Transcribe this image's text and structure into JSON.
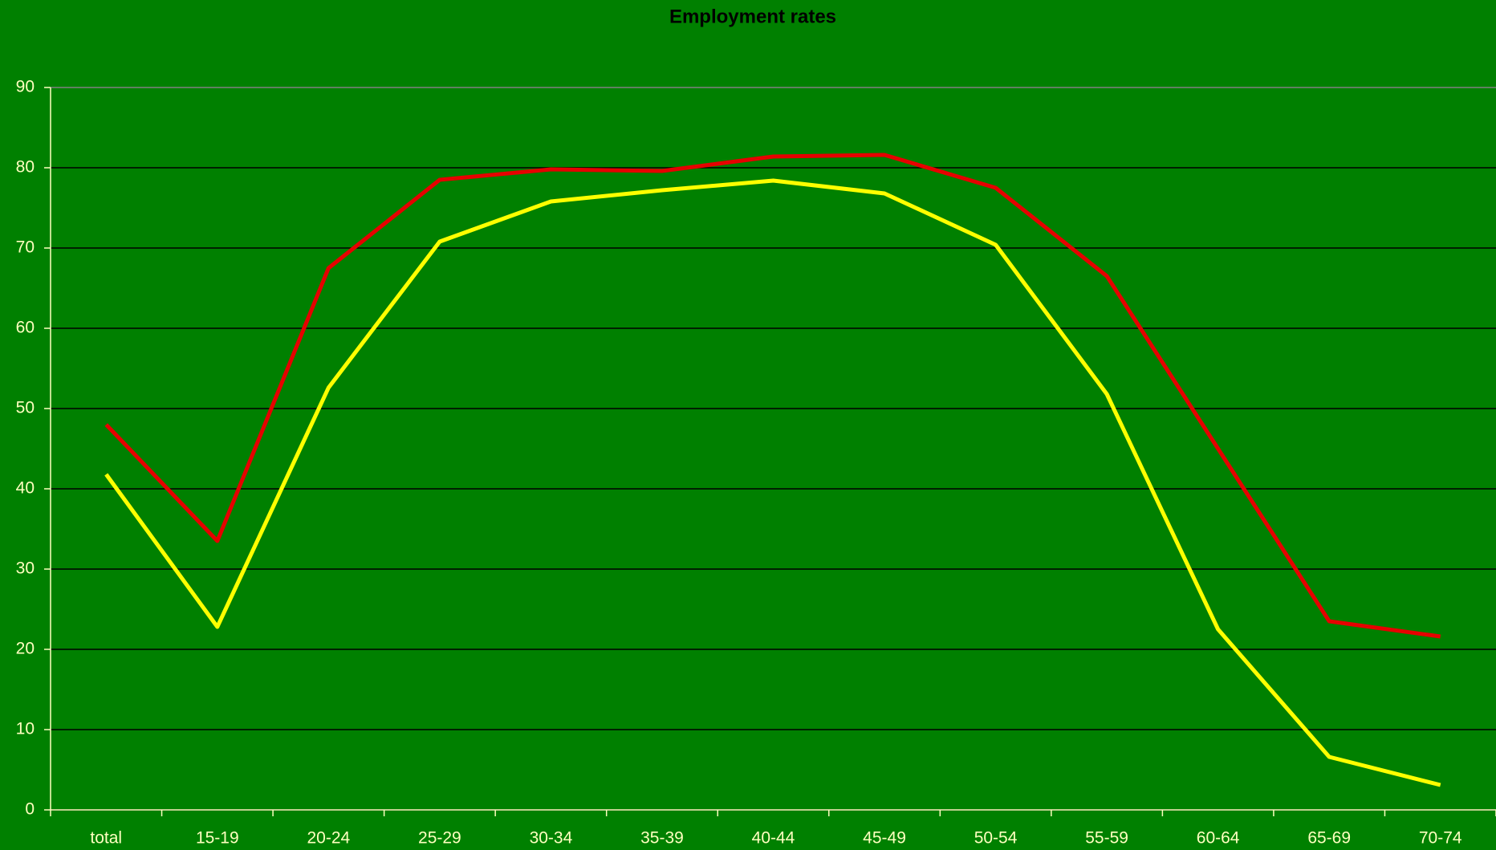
{
  "chart_data": {
    "type": "line",
    "title": "Employment rates",
    "categories": [
      "total",
      "15-19",
      "20-24",
      "25-29",
      "30-34",
      "35-39",
      "40-44",
      "45-49",
      "50-54",
      "55-59",
      "60-64",
      "65-69",
      "70-74"
    ],
    "series": [
      {
        "color": "#e60000",
        "values": [
          48,
          33.5,
          67.5,
          78.5,
          79.8,
          79.6,
          81.4,
          81.6,
          77.5,
          66.5,
          45,
          23.5,
          21.6
        ]
      },
      {
        "color": "#ffff00",
        "values": [
          41.8,
          22.8,
          52.6,
          70.8,
          75.8,
          77.2,
          78.4,
          76.8,
          70.4,
          51.8,
          22.5,
          6.6,
          3.1
        ]
      }
    ],
    "ylim": [
      0,
      90
    ],
    "yticks": [
      0,
      10,
      20,
      30,
      40,
      50,
      60,
      70,
      80,
      90
    ],
    "grid": true
  }
}
